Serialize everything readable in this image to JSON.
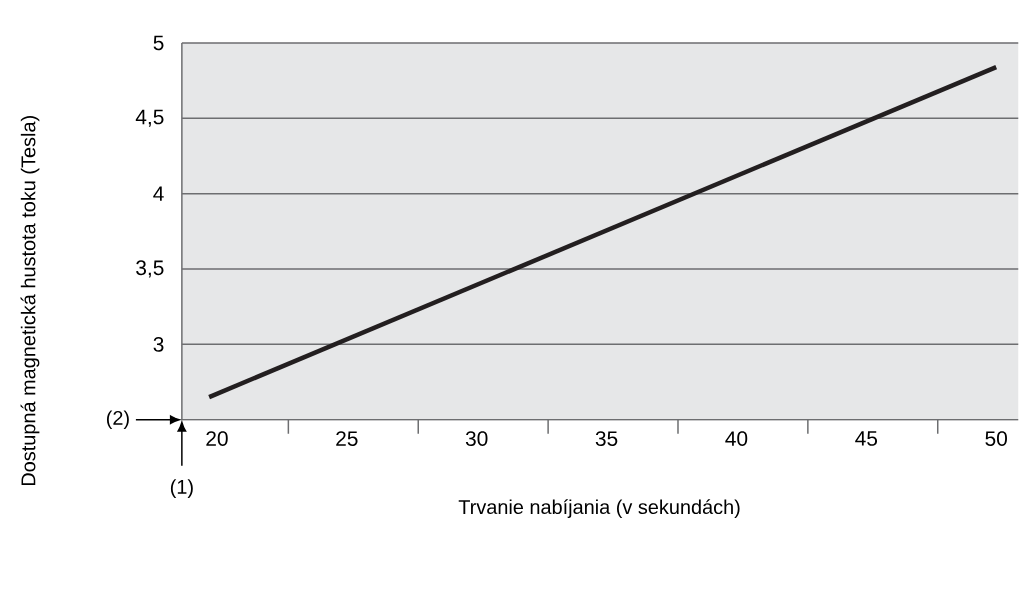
{
  "chart_data": {
    "type": "line",
    "xlabel": "Trvanie nabíjania (v sekundách)",
    "ylabel": "Dostupná magnetická hustota toku (Tesla)",
    "x": [
      19.7,
      50
    ],
    "values": [
      2.65,
      4.84
    ],
    "color": "#231f20",
    "xlim": [
      18.65,
      50.85
    ],
    "xticks": [
      20,
      25,
      30,
      35,
      40,
      45,
      50,
      {
        "value": 22.75,
        "label": null
      },
      {
        "value": 27.75,
        "label": null
      },
      {
        "value": 32.75,
        "label": null
      },
      {
        "value": 37.75,
        "label": null
      },
      {
        "value": 42.75,
        "label": null
      },
      {
        "value": 47.75,
        "label": null
      }
    ],
    "ylim": [
      2.5,
      5
    ],
    "yticks": [
      {
        "value": 3,
        "label": "3"
      },
      {
        "value": 3.5,
        "label": "3,5"
      },
      {
        "value": 4,
        "label": "4"
      },
      {
        "value": 4.5,
        "label": "4,5"
      },
      {
        "value": 5,
        "label": "5"
      }
    ],
    "grid": "y",
    "marker": "none",
    "line_style": "solid",
    "annotations": [
      "(1)",
      "(2)"
    ]
  }
}
